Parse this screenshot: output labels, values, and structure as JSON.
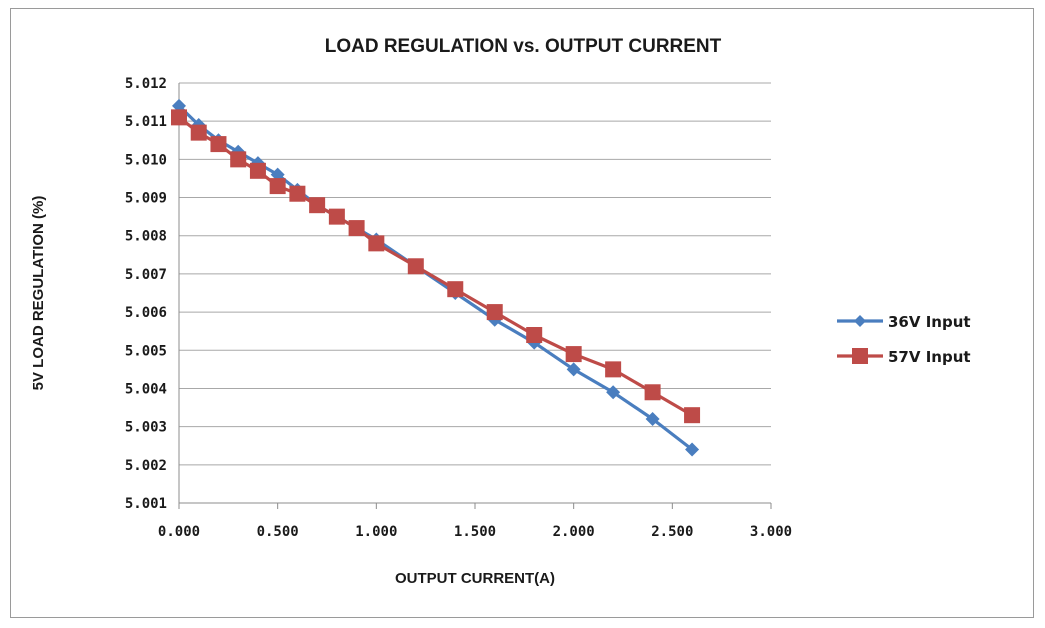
{
  "chart_data": {
    "type": "line",
    "title": "LOAD REGULATION vs. OUTPUT CURRENT",
    "xlabel": "OUTPUT CURRENT(A)",
    "ylabel": "5V LOAD REGULATION (%)",
    "xlim": [
      0,
      3
    ],
    "ylim": [
      5.001,
      5.012
    ],
    "x_ticks": [
      "0.000",
      "0.500",
      "1.000",
      "1.500",
      "2.000",
      "2.500",
      "3.000"
    ],
    "y_ticks": [
      "5.001",
      "5.002",
      "5.003",
      "5.004",
      "5.005",
      "5.006",
      "5.007",
      "5.008",
      "5.009",
      "5.010",
      "5.011",
      "5.012"
    ],
    "grid": "horizontal",
    "legend_position": "right",
    "series": [
      {
        "name": "36V Input",
        "color": "#4a7ebf",
        "marker": "diamond",
        "points": [
          [
            0.0,
            5.0114
          ],
          [
            0.1,
            5.0109
          ],
          [
            0.2,
            5.0105
          ],
          [
            0.3,
            5.0102
          ],
          [
            0.4,
            5.0099
          ],
          [
            0.5,
            5.0096
          ],
          [
            0.6,
            5.0092
          ],
          [
            0.7,
            5.0088
          ],
          [
            0.8,
            5.0085
          ],
          [
            0.9,
            5.0082
          ],
          [
            1.0,
            5.0079
          ],
          [
            1.2,
            5.0072
          ],
          [
            1.4,
            5.0065
          ],
          [
            1.6,
            5.0058
          ],
          [
            1.8,
            5.0052
          ],
          [
            2.0,
            5.0045
          ],
          [
            2.2,
            5.0039
          ],
          [
            2.4,
            5.0032
          ],
          [
            2.6,
            5.0024
          ]
        ]
      },
      {
        "name": "57V Input",
        "color": "#be4b48",
        "marker": "square",
        "points": [
          [
            0.0,
            5.0111
          ],
          [
            0.1,
            5.0107
          ],
          [
            0.2,
            5.0104
          ],
          [
            0.3,
            5.01
          ],
          [
            0.4,
            5.0097
          ],
          [
            0.5,
            5.0093
          ],
          [
            0.6,
            5.0091
          ],
          [
            0.7,
            5.0088
          ],
          [
            0.8,
            5.0085
          ],
          [
            0.9,
            5.0082
          ],
          [
            1.0,
            5.0078
          ],
          [
            1.2,
            5.0072
          ],
          [
            1.4,
            5.0066
          ],
          [
            1.6,
            5.006
          ],
          [
            1.8,
            5.0054
          ],
          [
            2.0,
            5.0049
          ],
          [
            2.2,
            5.0045
          ],
          [
            2.4,
            5.0039
          ],
          [
            2.6,
            5.0033
          ]
        ]
      }
    ]
  }
}
